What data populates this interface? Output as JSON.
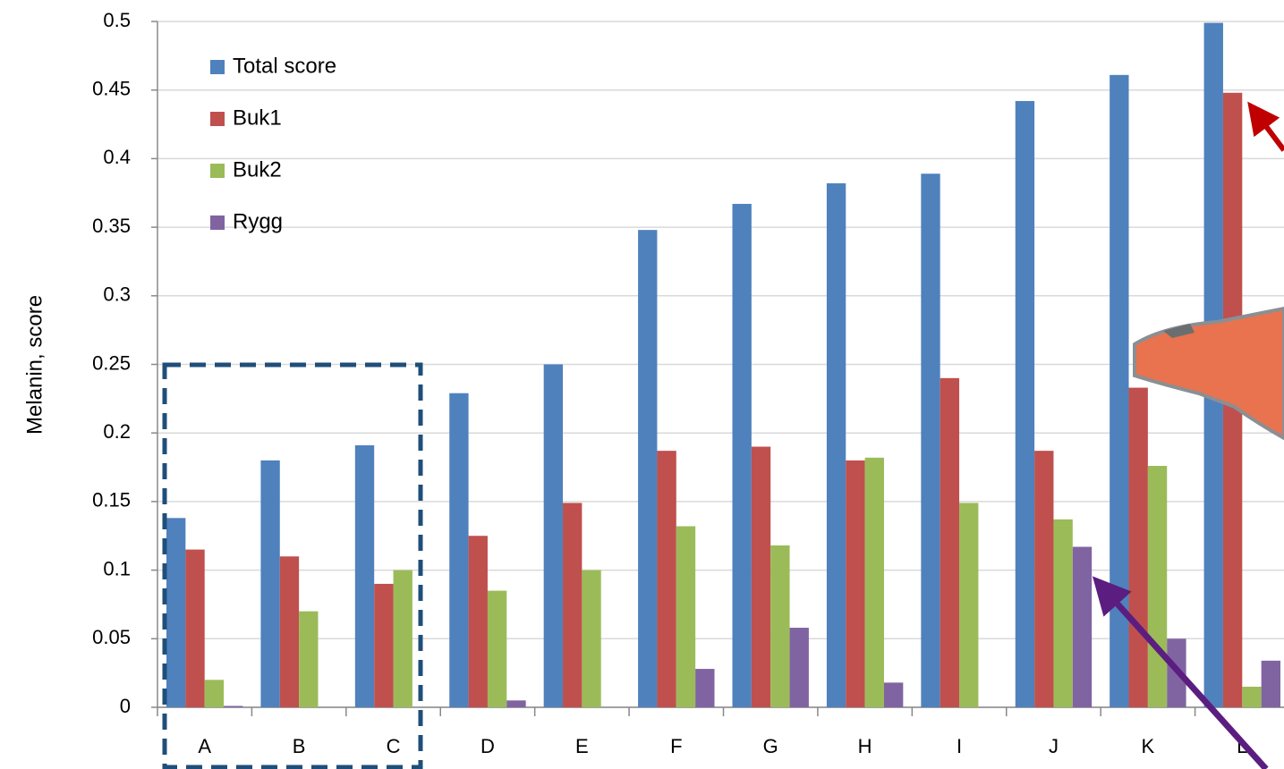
{
  "chart_data": {
    "type": "bar",
    "y_label": "Melanin, score",
    "categories": [
      "A",
      "B",
      "C",
      "D",
      "E",
      "F",
      "G",
      "H",
      "I",
      "J",
      "K",
      "L"
    ],
    "series": [
      {
        "name": "Total score",
        "color": "#4f81bd",
        "values": [
          0.138,
          0.18,
          0.191,
          0.229,
          0.25,
          0.348,
          0.367,
          0.382,
          0.389,
          0.442,
          0.461,
          0.499
        ]
      },
      {
        "name": "Buk1",
        "color": "#c0504d",
        "values": [
          0.115,
          0.11,
          0.09,
          0.125,
          0.149,
          0.187,
          0.19,
          0.18,
          0.24,
          0.187,
          0.233,
          0.448
        ]
      },
      {
        "name": "Buk2",
        "color": "#9bbb59",
        "values": [
          0.02,
          0.07,
          0.1,
          0.085,
          0.1,
          0.132,
          0.118,
          0.182,
          0.149,
          0.137,
          0.176,
          0.015
        ]
      },
      {
        "name": "Rygg",
        "color": "#8064a2",
        "values": [
          0.001,
          null,
          null,
          0.005,
          null,
          0.028,
          0.058,
          0.018,
          null,
          0.117,
          0.05,
          0.034
        ]
      }
    ],
    "ylim": [
      0,
      0.5
    ],
    "yticks": [
      0,
      0.05,
      0.1,
      0.15,
      0.2,
      0.25,
      0.3,
      0.35,
      0.4,
      0.45,
      0.5
    ],
    "grid": true,
    "legend": "upper-left"
  }
}
